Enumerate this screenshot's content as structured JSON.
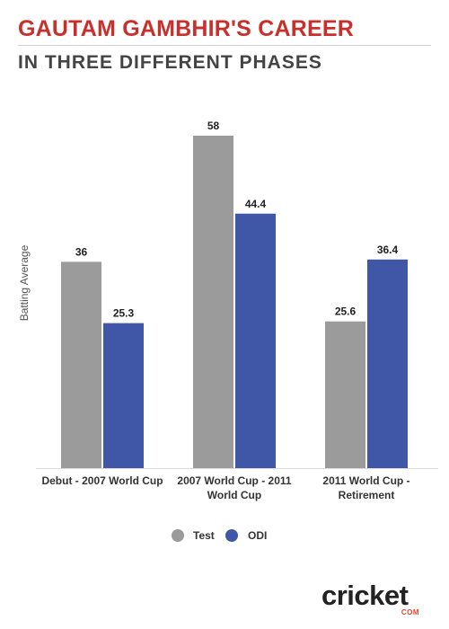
{
  "header": {
    "title": "GAUTAM GAMBHIR'S CAREER",
    "subtitle": "IN THREE DIFFERENT PHASES"
  },
  "colors": {
    "title": "#c9302c",
    "test": "#9b9b9b",
    "odi": "#4057a8"
  },
  "chart_data": {
    "type": "bar",
    "categories": [
      [
        "Debut - 2007 World Cup"
      ],
      [
        "2007 World Cup - 2011",
        "World Cup"
      ],
      [
        "2011 World Cup -",
        "Retirement"
      ]
    ],
    "series": [
      {
        "name": "Test",
        "values": [
          36,
          58,
          25.6
        ],
        "color": "#9b9b9b"
      },
      {
        "name": "ODI",
        "values": [
          25.3,
          44.4,
          36.4
        ],
        "color": "#4057a8"
      }
    ],
    "ylabel": "Batting Average",
    "ylim": [
      0,
      58
    ],
    "grid": false,
    "legend": "bottom-center"
  },
  "logo": {
    "word": "cricket",
    "sub": "COM"
  }
}
